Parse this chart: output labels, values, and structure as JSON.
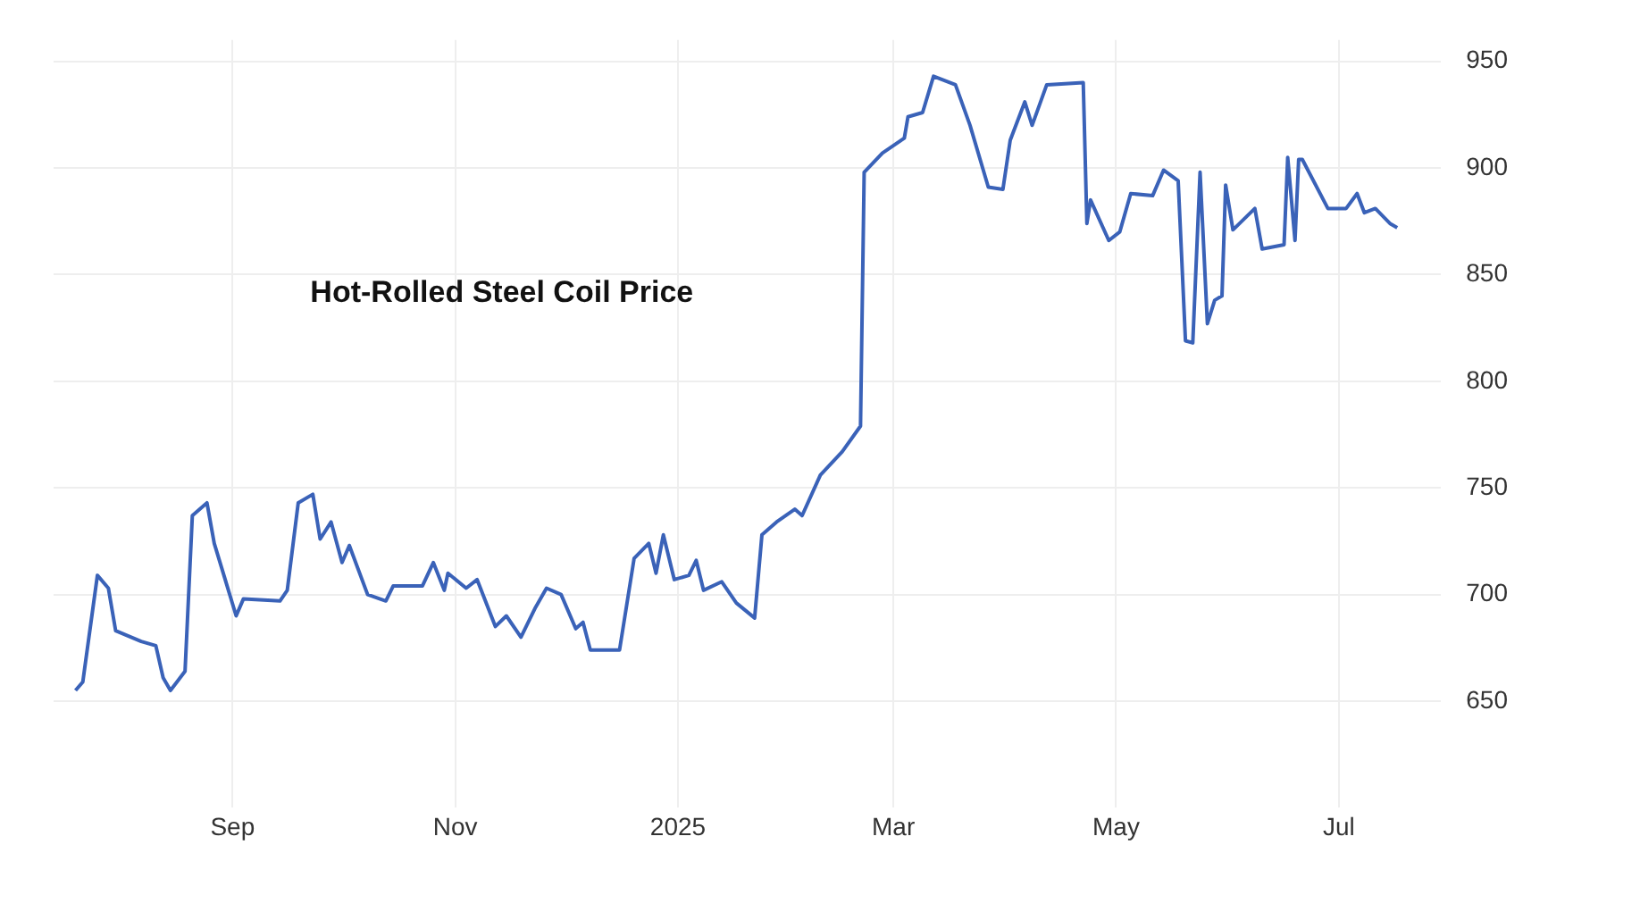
{
  "chart_data": {
    "type": "line",
    "title": "Hot-Rolled Steel Coil Price",
    "xlim": [
      "2024-07-14",
      "2025-07-29"
    ],
    "xticks": [
      {
        "value": "2024-09-01",
        "label": "Sep"
      },
      {
        "value": "2024-11-01",
        "label": "Nov"
      },
      {
        "value": "2025-01-01",
        "label": "2025"
      },
      {
        "value": "2025-03-01",
        "label": "Mar"
      },
      {
        "value": "2025-05-01",
        "label": "May"
      },
      {
        "value": "2025-07-01",
        "label": "Jul"
      }
    ],
    "ylim": [
      600,
      960
    ],
    "yticks": [
      650,
      700,
      750,
      800,
      850,
      900,
      950
    ],
    "grid": true,
    "legend": false,
    "marker": "none",
    "line_style": "solid",
    "x": [
      "2024-07-20",
      "2024-07-22",
      "2024-07-26",
      "2024-07-29",
      "2024-07-31",
      "2024-08-07",
      "2024-08-11",
      "2024-08-13",
      "2024-08-15",
      "2024-08-19",
      "2024-08-21",
      "2024-08-25",
      "2024-08-27",
      "2024-09-02",
      "2024-09-04",
      "2024-09-14",
      "2024-09-16",
      "2024-09-19",
      "2024-09-23",
      "2024-09-25",
      "2024-09-28",
      "2024-10-01",
      "2024-10-03",
      "2024-10-08",
      "2024-10-13",
      "2024-10-15",
      "2024-10-23",
      "2024-10-26",
      "2024-10-29",
      "2024-10-30",
      "2024-11-04",
      "2024-11-07",
      "2024-11-12",
      "2024-11-15",
      "2024-11-19",
      "2024-11-23",
      "2024-11-26",
      "2024-11-30",
      "2024-12-04",
      "2024-12-06",
      "2024-12-08",
      "2024-12-16",
      "2024-12-20",
      "2024-12-24",
      "2024-12-26",
      "2024-12-28",
      "2024-12-31",
      "2025-01-04",
      "2025-01-06",
      "2025-01-08",
      "2025-01-13",
      "2025-01-17",
      "2025-01-22",
      "2025-01-24",
      "2025-01-28",
      "2025-02-02",
      "2025-02-04",
      "2025-02-09",
      "2025-02-15",
      "2025-02-20",
      "2025-02-21",
      "2025-02-26",
      "2025-03-04",
      "2025-03-05",
      "2025-03-09",
      "2025-03-12",
      "2025-03-18",
      "2025-03-22",
      "2025-03-27",
      "2025-03-31",
      "2025-04-02",
      "2025-04-06",
      "2025-04-08",
      "2025-04-12",
      "2025-04-22",
      "2025-04-23",
      "2025-04-24",
      "2025-04-29",
      "2025-05-02",
      "2025-05-05",
      "2025-05-11",
      "2025-05-14",
      "2025-05-18",
      "2025-05-20",
      "2025-05-22",
      "2025-05-24",
      "2025-05-26",
      "2025-05-28",
      "2025-05-30",
      "2025-05-31",
      "2025-06-02",
      "2025-06-08",
      "2025-06-10",
      "2025-06-16",
      "2025-06-17",
      "2025-06-19",
      "2025-06-20",
      "2025-06-21",
      "2025-06-28",
      "2025-07-03",
      "2025-07-06",
      "2025-07-08",
      "2025-07-11",
      "2025-07-15",
      "2025-07-17"
    ],
    "series": [
      {
        "color": "#3a62b8",
        "values": [
          655,
          659,
          709,
          703,
          683,
          678,
          676,
          661,
          655,
          664,
          737,
          743,
          724,
          690,
          698,
          697,
          702,
          743,
          747,
          726,
          734,
          715,
          723,
          700,
          697,
          704,
          704,
          715,
          702,
          710,
          703,
          707,
          685,
          690,
          680,
          694,
          703,
          700,
          684,
          687,
          674,
          674,
          717,
          724,
          710,
          728,
          707,
          709,
          716,
          702,
          706,
          696,
          689,
          728,
          734,
          740,
          737,
          756,
          767,
          779,
          898,
          907,
          914,
          924,
          926,
          943,
          939,
          920,
          891,
          890,
          913,
          931,
          920,
          939,
          940,
          874,
          885,
          866,
          870,
          888,
          887,
          899,
          894,
          819,
          818,
          898,
          827,
          838,
          840,
          892,
          871,
          881,
          862,
          864,
          905,
          866,
          904,
          904,
          881,
          881,
          888,
          879,
          881,
          874,
          872
        ]
      }
    ]
  }
}
